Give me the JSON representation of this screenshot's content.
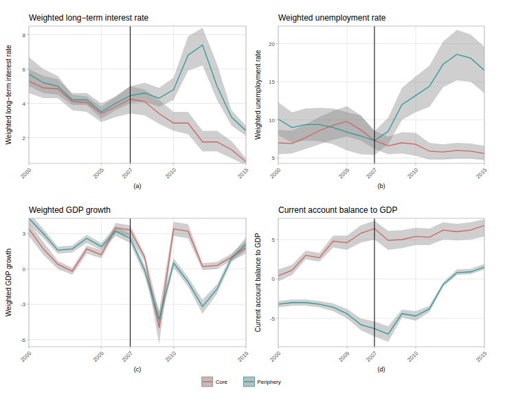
{
  "chart_data": [
    {
      "type": "line",
      "title": "Weighted long−term interest rate",
      "y_label": "Weighted long−term interest rate",
      "caption": "(a)",
      "x": [
        2000,
        2001,
        2002,
        2003,
        2004,
        2005,
        2006,
        2007,
        2008,
        2009,
        2010,
        2011,
        2012,
        2013,
        2014,
        2015
      ],
      "xlim": [
        2000,
        2015
      ],
      "xticks": [
        2000,
        2005,
        2007,
        2010,
        2015
      ],
      "ylim": [
        0.5,
        8.5
      ],
      "yticks": [
        2,
        4,
        6,
        8
      ],
      "grid": true,
      "reference_x": 2007,
      "legend": "bottom",
      "series": [
        {
          "name": "Core",
          "color": "#d0625c",
          "values": [
            5.3,
            4.9,
            4.85,
            4.1,
            4.05,
            3.4,
            3.8,
            4.25,
            4.1,
            3.4,
            2.85,
            2.85,
            1.75,
            1.75,
            1.3,
            0.6
          ],
          "lower": [
            4.6,
            4.3,
            4.3,
            3.6,
            3.5,
            2.9,
            3.2,
            3.4,
            3.3,
            2.8,
            2.4,
            2.2,
            1.2,
            1.2,
            0.8,
            0.4
          ],
          "upper": [
            6.0,
            5.6,
            5.4,
            4.6,
            4.6,
            4.0,
            4.4,
            5.0,
            4.8,
            4.2,
            3.5,
            3.5,
            2.4,
            2.4,
            1.8,
            0.8
          ]
        },
        {
          "name": "Periphery",
          "color": "#2a9a9a",
          "values": [
            5.7,
            5.2,
            5.0,
            4.2,
            4.2,
            3.5,
            4.0,
            4.45,
            4.6,
            4.3,
            4.8,
            6.8,
            7.4,
            5.0,
            3.2,
            2.4
          ],
          "lower": [
            5.0,
            4.6,
            4.5,
            3.9,
            3.9,
            3.1,
            3.6,
            4.0,
            4.1,
            3.8,
            4.2,
            5.9,
            6.2,
            4.2,
            2.7,
            2.1
          ],
          "upper": [
            6.7,
            6.0,
            5.6,
            4.5,
            4.4,
            3.8,
            4.4,
            5.0,
            5.2,
            4.9,
            5.5,
            7.9,
            8.4,
            6.3,
            3.6,
            2.7
          ]
        }
      ]
    },
    {
      "type": "line",
      "title": "Weighted unemployment rate",
      "y_label": "Weighted unemployment rate",
      "caption": "(b)",
      "x": [
        2000,
        2001,
        2002,
        2003,
        2004,
        2005,
        2006,
        2007,
        2008,
        2009,
        2010,
        2011,
        2012,
        2013,
        2014,
        2015
      ],
      "xlim": [
        2000,
        2015
      ],
      "xticks": [
        2000,
        2005,
        2007,
        2010,
        2015
      ],
      "ylim": [
        4.3,
        22.3
      ],
      "yticks": [
        5,
        10,
        15,
        20
      ],
      "grid": true,
      "reference_x": 2007,
      "series": [
        {
          "name": "Core",
          "color": "#d0625c",
          "values": [
            7.0,
            6.9,
            7.7,
            8.6,
            9.3,
            9.8,
            8.7,
            7.3,
            6.6,
            7.0,
            6.8,
            5.9,
            5.8,
            6.0,
            5.9,
            5.6
          ],
          "lower": [
            5.5,
            5.6,
            6.2,
            6.8,
            7.4,
            7.8,
            7.3,
            6.2,
            5.5,
            5.6,
            5.3,
            4.8,
            4.8,
            4.9,
            4.9,
            4.7
          ],
          "upper": [
            8.7,
            8.6,
            9.4,
            10.4,
            11.2,
            11.8,
            10.6,
            8.6,
            7.8,
            8.4,
            8.3,
            7.0,
            6.8,
            7.0,
            6.9,
            6.6
          ]
        },
        {
          "name": "Periphery",
          "color": "#2a9a9a",
          "values": [
            10.1,
            9.0,
            9.4,
            9.4,
            9.0,
            8.4,
            7.9,
            7.3,
            8.5,
            12.0,
            13.2,
            14.4,
            17.3,
            18.6,
            18.1,
            16.5
          ],
          "lower": [
            8.0,
            7.0,
            7.3,
            7.2,
            6.8,
            6.0,
            5.5,
            5.4,
            6.8,
            10.0,
            11.0,
            11.7,
            14.3,
            15.2,
            15.0,
            13.5
          ],
          "upper": [
            12.3,
            11.0,
            11.5,
            11.6,
            11.5,
            11.0,
            10.6,
            8.5,
            10.3,
            14.2,
            15.7,
            17.1,
            20.3,
            21.8,
            21.2,
            19.6
          ]
        }
      ]
    },
    {
      "type": "line",
      "title": "Weighted GDP growth",
      "y_label": "Weighted GDP growth",
      "caption": "(c)",
      "x": [
        2000,
        2001,
        2002,
        2003,
        2004,
        2005,
        2006,
        2007,
        2008,
        2009,
        2010,
        2011,
        2012,
        2013,
        2014,
        2015
      ],
      "xlim": [
        2000,
        2015
      ],
      "xticks": [
        2000,
        2005,
        2007,
        2010,
        2015
      ],
      "ylim": [
        -6.6,
        4.3
      ],
      "yticks": [
        -6,
        -3,
        0,
        3
      ],
      "grid": true,
      "reference_x": 2007,
      "series": [
        {
          "name": "Core",
          "color": "#d0625c",
          "values": [
            3.4,
            1.7,
            0.4,
            -0.2,
            1.7,
            1.2,
            3.5,
            3.3,
            1.0,
            -5.0,
            3.4,
            3.2,
            0.2,
            0.3,
            1.0,
            1.8
          ],
          "lower": [
            2.8,
            1.2,
            0,
            -0.5,
            1.3,
            0.9,
            3.1,
            2.8,
            0.6,
            -6.4,
            2.8,
            2.6,
            -0.1,
            0,
            0.7,
            1.3
          ],
          "upper": [
            3.9,
            2.3,
            0.7,
            0.1,
            2.0,
            1.6,
            3.9,
            3.7,
            1.3,
            -3.6,
            4.0,
            3.8,
            0.5,
            0.6,
            1.3,
            2.4
          ]
        },
        {
          "name": "Periphery",
          "color": "#2a9a9a",
          "values": [
            4.3,
            3.0,
            1.6,
            1.7,
            2.6,
            1.9,
            3.2,
            2.6,
            -0.1,
            -4.3,
            0.5,
            -1.1,
            -3.2,
            -1.7,
            0.9,
            2.1
          ],
          "lower": [
            3.8,
            2.6,
            1.3,
            1.4,
            2.2,
            1.6,
            2.8,
            2.2,
            -0.6,
            -5.0,
            0.1,
            -1.5,
            -3.8,
            -2.1,
            0.6,
            1.6
          ],
          "upper": [
            4.8,
            3.4,
            1.9,
            2.0,
            2.9,
            2.2,
            3.6,
            3.0,
            0.3,
            -3.6,
            0.9,
            -0.7,
            -2.6,
            -1.3,
            1.2,
            2.7
          ]
        }
      ]
    },
    {
      "type": "line",
      "title": "Current account balance to GDP",
      "y_label": "Current account balance to GDP",
      "caption": "(d)",
      "x": [
        2000,
        2001,
        2002,
        2003,
        2004,
        2005,
        2006,
        2007,
        2008,
        2009,
        2010,
        2011,
        2012,
        2013,
        2014,
        2015
      ],
      "xlim": [
        2000,
        2015
      ],
      "xticks": [
        2000,
        2005,
        2007,
        2010,
        2015
      ],
      "ylim": [
        -8.6,
        7.7
      ],
      "yticks": [
        -5,
        0,
        5
      ],
      "grid": true,
      "reference_x": 2007,
      "series": [
        {
          "name": "Core",
          "color": "#d0625c",
          "values": [
            0.4,
            1.1,
            3.0,
            2.7,
            4.8,
            4.6,
            5.8,
            6.4,
            4.9,
            5.0,
            5.4,
            5.3,
            6.2,
            6.0,
            6.2,
            6.8
          ],
          "lower": [
            -0.3,
            0.5,
            2.5,
            2.2,
            4.0,
            3.7,
            4.6,
            5.0,
            3.7,
            3.9,
            4.3,
            4.3,
            5.0,
            4.9,
            5.0,
            5.4
          ],
          "upper": [
            1.2,
            1.8,
            3.6,
            3.3,
            5.5,
            5.5,
            6.8,
            7.4,
            6.1,
            6.2,
            6.5,
            6.4,
            7.2,
            7.0,
            7.2,
            7.6
          ]
        },
        {
          "name": "Periphery",
          "color": "#2a9a9a",
          "values": [
            -3.2,
            -3.0,
            -3.0,
            -3.2,
            -3.6,
            -4.4,
            -5.8,
            -6.3,
            -7.0,
            -4.4,
            -4.7,
            -3.8,
            -0.7,
            0.8,
            0.9,
            1.5
          ],
          "lower": [
            -3.6,
            -3.4,
            -3.4,
            -3.6,
            -4.1,
            -5.0,
            -6.5,
            -7.3,
            -8.0,
            -4.9,
            -5.3,
            -4.2,
            -1.0,
            0.5,
            0.6,
            1.2
          ],
          "upper": [
            -2.8,
            -2.6,
            -2.6,
            -2.8,
            -3.1,
            -3.8,
            -5.0,
            -5.4,
            -6.0,
            -3.9,
            -4.1,
            -3.4,
            -0.4,
            1.2,
            1.3,
            1.9
          ]
        }
      ]
    }
  ]
}
